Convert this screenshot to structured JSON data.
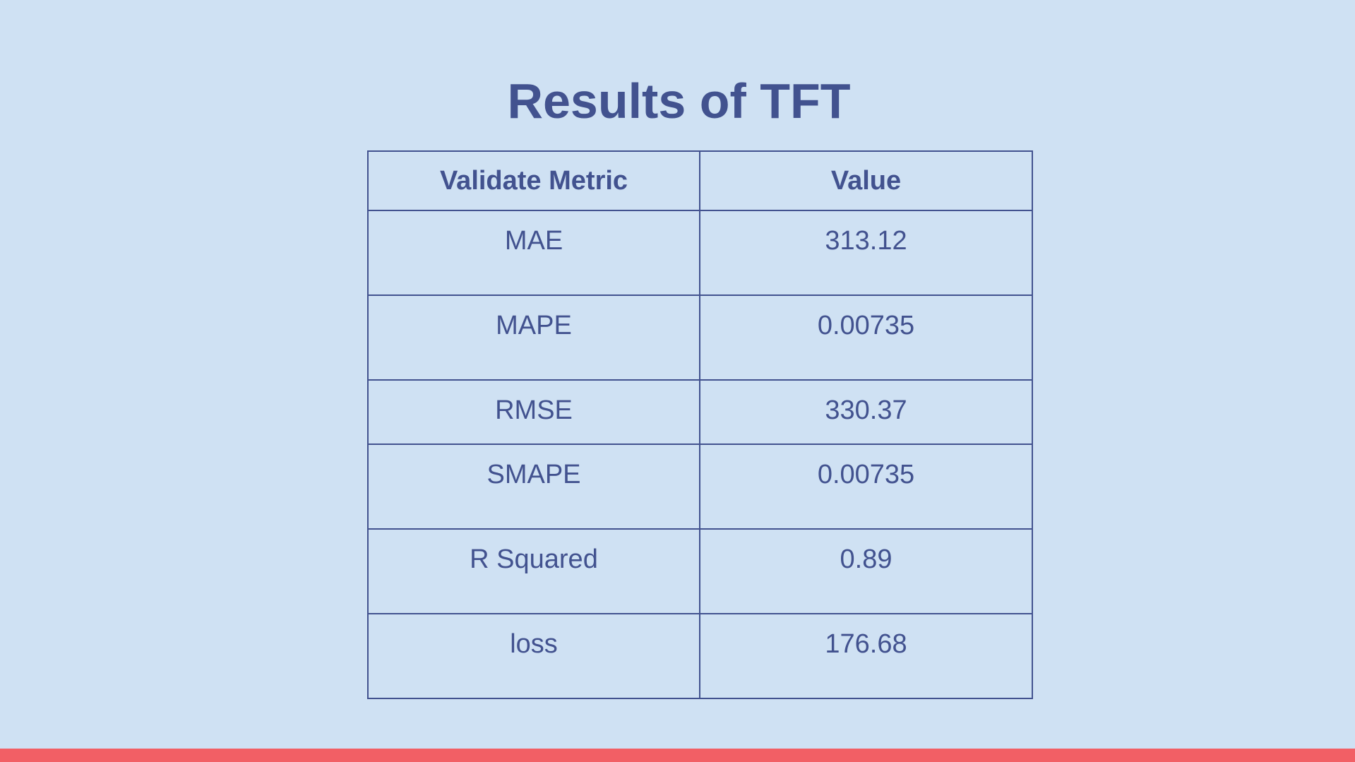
{
  "slide": {
    "title": "Results of TFT"
  },
  "table": {
    "headers": [
      "Validate Metric",
      "Value"
    ],
    "rows": [
      {
        "metric": "MAE",
        "value": "313.12"
      },
      {
        "metric": "MAPE",
        "value": "0.00735"
      },
      {
        "metric": "RMSE",
        "value": "330.37"
      },
      {
        "metric": "SMAPE",
        "value": "0.00735"
      },
      {
        "metric": "R Squared",
        "value": "0.89"
      },
      {
        "metric": "loss",
        "value": "176.68"
      }
    ]
  },
  "colors": {
    "background": "#cfe1f3",
    "text": "#42528f",
    "accent_bar": "#f25f65"
  }
}
